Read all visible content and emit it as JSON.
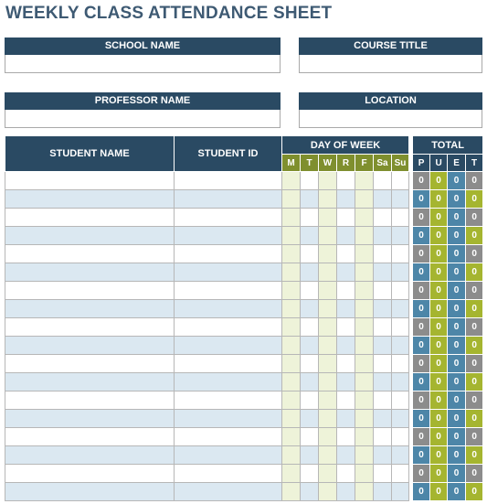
{
  "title": "WEEKLY CLASS ATTENDANCE SHEET",
  "fields": {
    "school_name": "SCHOOL NAME",
    "course_title": "COURSE TITLE",
    "professor_name": "PROFESSOR NAME",
    "location": "LOCATION"
  },
  "table": {
    "student_name": "STUDENT NAME",
    "student_id": "STUDENT ID",
    "day_of_week": "DAY OF WEEK",
    "total": "TOTAL",
    "days": [
      "M",
      "T",
      "W",
      "R",
      "F",
      "Sa",
      "Su"
    ],
    "totals": [
      "P",
      "U",
      "E",
      "T"
    ],
    "row_count": 18,
    "total_values": [
      "0",
      "0",
      "0",
      "0"
    ]
  },
  "colors": {
    "header_blue": "#2a4a63",
    "day_olive": "#7f8f2e",
    "row_alt": "#dbe8f1",
    "col_tint": "#eef3d9",
    "total_grey": "#8c8c8c",
    "total_green": "#a5b530",
    "total_blue": "#4d86a8"
  }
}
